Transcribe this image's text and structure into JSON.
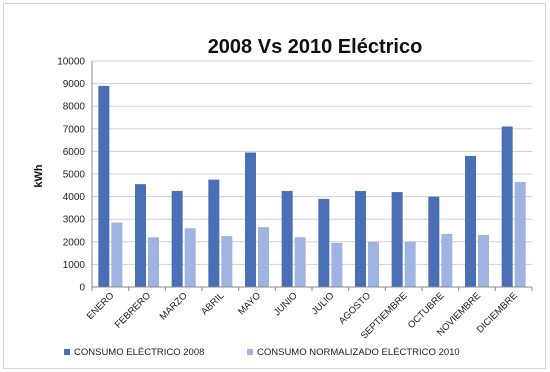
{
  "chart_data": {
    "type": "bar",
    "title": "2008 Vs 2010 Eléctrico",
    "xlabel": "",
    "ylabel": "kWh",
    "ylim": [
      0,
      10000
    ],
    "yticks": [
      "0",
      "1000",
      "2000",
      "3000",
      "4000",
      "5000",
      "6000",
      "7000",
      "8000",
      "9000",
      "10000"
    ],
    "grid": true,
    "legend_position": "bottom",
    "categories": [
      "ENERO",
      "FEBRERO",
      "MARZO",
      "ABRIL",
      "MAYO",
      "JUNIO",
      "JULIO",
      "AGOSTO",
      "SEPTIEMBRE",
      "OCTUBRE",
      "NOVIEMBRE",
      "DICIEMBRE"
    ],
    "series": [
      {
        "name": "CONSUMO ELÉCTRICO 2008",
        "color": "#4a6fb5",
        "values": [
          8900,
          4550,
          4250,
          4750,
          5950,
          4250,
          3900,
          4250,
          4200,
          4000,
          5800,
          7100
        ]
      },
      {
        "name": "CONSUMO NORMALIZADO ELÉCTRICO 2010",
        "color": "#9fb4e0",
        "values": [
          2850,
          2200,
          2600,
          2250,
          2650,
          2200,
          1950,
          2000,
          2000,
          2350,
          2300,
          4650
        ]
      }
    ]
  }
}
